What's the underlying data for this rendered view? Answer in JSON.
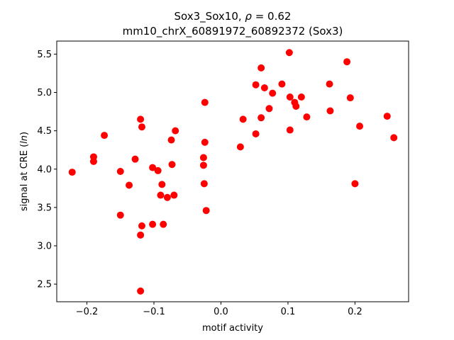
{
  "chart_data": {
    "type": "scatter",
    "title_main": "Sox3_Sox10, ",
    "title_rho_symbol": "ρ",
    "title_rho_value": " = 0.62",
    "subtitle": "mm10_chrX_60891972_60892372 (Sox3)",
    "xlabel": "motif activity",
    "ylabel_prefix": "signal at CRE (",
    "ylabel_italic": "ln",
    "ylabel_suffix": ")",
    "xlim": [
      -0.245,
      0.28
    ],
    "ylim": [
      2.27,
      5.67
    ],
    "x_ticks": [
      -0.2,
      -0.1,
      0.0,
      0.1,
      0.2
    ],
    "x_tick_labels": [
      "−0.2",
      "−0.1",
      "0.0",
      "0.1",
      "0.2"
    ],
    "y_ticks": [
      2.5,
      3.0,
      3.5,
      4.0,
      4.5,
      5.0,
      5.5
    ],
    "y_tick_labels": [
      "2.5",
      "3.0",
      "3.5",
      "4.0",
      "4.5",
      "5.0",
      "5.5"
    ],
    "grid": false,
    "legend": "none",
    "marker_color": "#ff0000",
    "points": [
      {
        "x": -0.222,
        "y": 3.96
      },
      {
        "x": -0.19,
        "y": 4.16
      },
      {
        "x": -0.19,
        "y": 4.1
      },
      {
        "x": -0.174,
        "y": 4.44
      },
      {
        "x": -0.15,
        "y": 3.97
      },
      {
        "x": -0.15,
        "y": 3.4
      },
      {
        "x": -0.137,
        "y": 3.79
      },
      {
        "x": -0.128,
        "y": 4.13
      },
      {
        "x": -0.12,
        "y": 4.65
      },
      {
        "x": -0.118,
        "y": 4.55
      },
      {
        "x": -0.12,
        "y": 3.14
      },
      {
        "x": -0.118,
        "y": 3.26
      },
      {
        "x": -0.12,
        "y": 2.41
      },
      {
        "x": -0.102,
        "y": 4.02
      },
      {
        "x": -0.102,
        "y": 3.28
      },
      {
        "x": -0.094,
        "y": 3.98
      },
      {
        "x": -0.09,
        "y": 3.66
      },
      {
        "x": -0.088,
        "y": 3.8
      },
      {
        "x": -0.086,
        "y": 3.28
      },
      {
        "x": -0.08,
        "y": 3.63
      },
      {
        "x": -0.074,
        "y": 4.38
      },
      {
        "x": -0.073,
        "y": 4.06
      },
      {
        "x": -0.068,
        "y": 4.5
      },
      {
        "x": -0.07,
        "y": 3.66
      },
      {
        "x": -0.024,
        "y": 4.87
      },
      {
        "x": -0.024,
        "y": 4.35
      },
      {
        "x": -0.026,
        "y": 4.15
      },
      {
        "x": -0.026,
        "y": 4.05
      },
      {
        "x": -0.025,
        "y": 3.81
      },
      {
        "x": -0.022,
        "y": 3.46
      },
      {
        "x": 0.029,
        "y": 4.29
      },
      {
        "x": 0.033,
        "y": 4.65
      },
      {
        "x": 0.052,
        "y": 5.1
      },
      {
        "x": 0.052,
        "y": 4.46
      },
      {
        "x": 0.06,
        "y": 5.32
      },
      {
        "x": 0.06,
        "y": 4.67
      },
      {
        "x": 0.065,
        "y": 5.06
      },
      {
        "x": 0.072,
        "y": 4.79
      },
      {
        "x": 0.077,
        "y": 4.99
      },
      {
        "x": 0.091,
        "y": 5.11
      },
      {
        "x": 0.102,
        "y": 5.52
      },
      {
        "x": 0.103,
        "y": 4.94
      },
      {
        "x": 0.103,
        "y": 4.51
      },
      {
        "x": 0.11,
        "y": 4.87
      },
      {
        "x": 0.112,
        "y": 4.82
      },
      {
        "x": 0.12,
        "y": 4.94
      },
      {
        "x": 0.128,
        "y": 4.68
      },
      {
        "x": 0.162,
        "y": 5.11
      },
      {
        "x": 0.163,
        "y": 4.76
      },
      {
        "x": 0.188,
        "y": 5.4
      },
      {
        "x": 0.193,
        "y": 4.93
      },
      {
        "x": 0.2,
        "y": 3.81
      },
      {
        "x": 0.207,
        "y": 4.56
      },
      {
        "x": 0.248,
        "y": 4.69
      },
      {
        "x": 0.258,
        "y": 4.41
      }
    ]
  }
}
